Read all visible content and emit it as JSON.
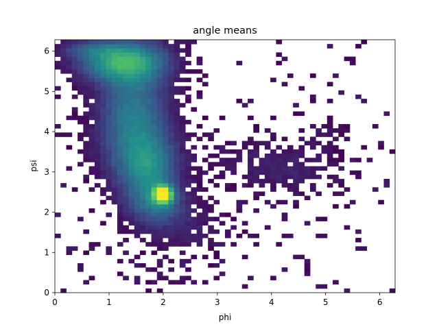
{
  "chart_data": {
    "type": "heatmap",
    "title": "angle means",
    "xlabel": "phi",
    "ylabel": "psi",
    "xlim": [
      0,
      6.283
    ],
    "ylim": [
      0,
      6.283
    ],
    "xticks": [
      0,
      1,
      2,
      3,
      4,
      5,
      6
    ],
    "yticks": [
      0,
      1,
      2,
      3,
      4,
      5,
      6
    ],
    "bins": 60,
    "colormap": [
      "#440154",
      "#3b528b",
      "#21918c",
      "#5ec962",
      "#fde725"
    ],
    "empty_bins_color": "#ffffff",
    "density_features": [
      {
        "name": "upper-left band",
        "phi": 1.3,
        "psi": 5.7,
        "level": 0.55
      },
      {
        "name": "beta-region wide",
        "phi": 1.4,
        "psi": 4.2,
        "level": 0.42
      },
      {
        "name": "peak",
        "phi": 2.0,
        "psi": 2.45,
        "level": 1.0
      },
      {
        "name": "lower-right ridge",
        "phi": 4.3,
        "psi": 3.0,
        "level": 0.12
      },
      {
        "name": "right cluster",
        "phi": 5.0,
        "psi": 4.0,
        "level": 0.1
      }
    ]
  }
}
